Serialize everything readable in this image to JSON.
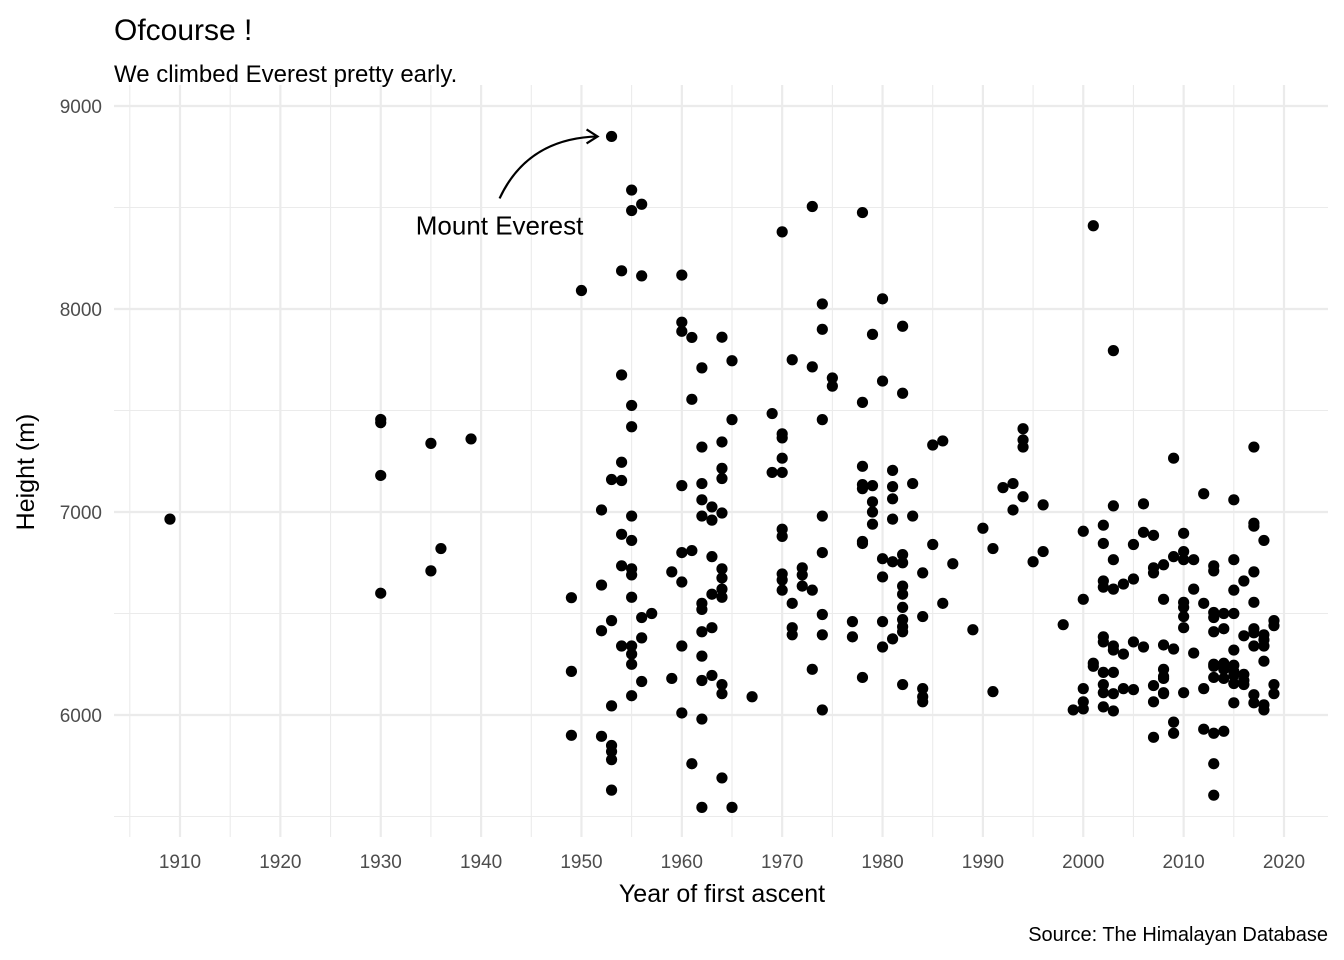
{
  "chart_data": {
    "type": "scatter",
    "title": "Ofcourse !",
    "subtitle": "We climbed Everest pretty early.",
    "xlabel": "Year of first ascent",
    "ylabel": "Height (m)",
    "caption": "Source: The Himalayan Database",
    "xlim": [
      1904,
      2024
    ],
    "ylim": [
      5500,
      9000
    ],
    "x_ticks": [
      1910,
      1920,
      1930,
      1940,
      1950,
      1960,
      1970,
      1980,
      1990,
      2000,
      2010,
      2020
    ],
    "y_ticks": [
      6000,
      7000,
      8000,
      9000
    ],
    "grid": true,
    "legend": "none",
    "point_color": "#000000",
    "annotation": {
      "text": "Mount Everest",
      "target_x": 1953,
      "target_y": 8850,
      "style": "curved-arrow"
    },
    "points": [
      [
        1909,
        6965
      ],
      [
        1930,
        7456
      ],
      [
        1930,
        7440
      ],
      [
        1930,
        7180
      ],
      [
        1930,
        6600
      ],
      [
        1935,
        7338
      ],
      [
        1935,
        6710
      ],
      [
        1936,
        6820
      ],
      [
        1939,
        7360
      ],
      [
        1949,
        6578
      ],
      [
        1949,
        6215
      ],
      [
        1949,
        5900
      ],
      [
        1950,
        8091
      ],
      [
        1952,
        7010
      ],
      [
        1952,
        6640
      ],
      [
        1952,
        6415
      ],
      [
        1952,
        5895
      ],
      [
        1953,
        8850
      ],
      [
        1953,
        7160
      ],
      [
        1953,
        6465
      ],
      [
        1953,
        6045
      ],
      [
        1953,
        5850
      ],
      [
        1953,
        5820
      ],
      [
        1953,
        5780
      ],
      [
        1953,
        5630
      ],
      [
        1954,
        8188
      ],
      [
        1954,
        7675
      ],
      [
        1954,
        7245
      ],
      [
        1954,
        7155
      ],
      [
        1954,
        6890
      ],
      [
        1954,
        6735
      ],
      [
        1954,
        6340
      ],
      [
        1955,
        8586
      ],
      [
        1955,
        8485
      ],
      [
        1955,
        7525
      ],
      [
        1955,
        7420
      ],
      [
        1955,
        6980
      ],
      [
        1955,
        6860
      ],
      [
        1955,
        6720
      ],
      [
        1955,
        6690
      ],
      [
        1955,
        6580
      ],
      [
        1955,
        6340
      ],
      [
        1955,
        6300
      ],
      [
        1955,
        6250
      ],
      [
        1955,
        6095
      ],
      [
        1956,
        8516
      ],
      [
        1956,
        8163
      ],
      [
        1956,
        6480
      ],
      [
        1956,
        6380
      ],
      [
        1956,
        6165
      ],
      [
        1957,
        6500
      ],
      [
        1959,
        6705
      ],
      [
        1959,
        6180
      ],
      [
        1960,
        8167
      ],
      [
        1960,
        7935
      ],
      [
        1960,
        7890
      ],
      [
        1960,
        7130
      ],
      [
        1960,
        6800
      ],
      [
        1960,
        6655
      ],
      [
        1960,
        6340
      ],
      [
        1960,
        6010
      ],
      [
        1961,
        7860
      ],
      [
        1961,
        7555
      ],
      [
        1961,
        6810
      ],
      [
        1961,
        5760
      ],
      [
        1962,
        7710
      ],
      [
        1962,
        7320
      ],
      [
        1962,
        7140
      ],
      [
        1962,
        7060
      ],
      [
        1962,
        6980
      ],
      [
        1962,
        6550
      ],
      [
        1962,
        6520
      ],
      [
        1962,
        6410
      ],
      [
        1962,
        6290
      ],
      [
        1962,
        6170
      ],
      [
        1962,
        5980
      ],
      [
        1962,
        5545
      ],
      [
        1963,
        7025
      ],
      [
        1963,
        6960
      ],
      [
        1963,
        6780
      ],
      [
        1963,
        6595
      ],
      [
        1963,
        6430
      ],
      [
        1963,
        6195
      ],
      [
        1964,
        7861
      ],
      [
        1964,
        7345
      ],
      [
        1964,
        7215
      ],
      [
        1964,
        7165
      ],
      [
        1964,
        6995
      ],
      [
        1964,
        6720
      ],
      [
        1964,
        6675
      ],
      [
        1964,
        6620
      ],
      [
        1964,
        6580
      ],
      [
        1964,
        6150
      ],
      [
        1964,
        6105
      ],
      [
        1964,
        5690
      ],
      [
        1965,
        7745
      ],
      [
        1965,
        7455
      ],
      [
        1965,
        5545
      ],
      [
        1967,
        6090
      ],
      [
        1969,
        7485
      ],
      [
        1969,
        7195
      ],
      [
        1970,
        8380
      ],
      [
        1970,
        7385
      ],
      [
        1970,
        7365
      ],
      [
        1970,
        7265
      ],
      [
        1970,
        7195
      ],
      [
        1970,
        6915
      ],
      [
        1970,
        6880
      ],
      [
        1970,
        6695
      ],
      [
        1970,
        6665
      ],
      [
        1970,
        6615
      ],
      [
        1971,
        7750
      ],
      [
        1971,
        6550
      ],
      [
        1971,
        6430
      ],
      [
        1971,
        6395
      ],
      [
        1972,
        6725
      ],
      [
        1972,
        6690
      ],
      [
        1972,
        6635
      ],
      [
        1973,
        8505
      ],
      [
        1973,
        7715
      ],
      [
        1973,
        6615
      ],
      [
        1973,
        6225
      ],
      [
        1974,
        8025
      ],
      [
        1974,
        7900
      ],
      [
        1974,
        7455
      ],
      [
        1974,
        6980
      ],
      [
        1974,
        6800
      ],
      [
        1974,
        6495
      ],
      [
        1974,
        6395
      ],
      [
        1974,
        6025
      ],
      [
        1975,
        7660
      ],
      [
        1975,
        7620
      ],
      [
        1977,
        6460
      ],
      [
        1977,
        6385
      ],
      [
        1978,
        8475
      ],
      [
        1978,
        7540
      ],
      [
        1978,
        7225
      ],
      [
        1978,
        7135
      ],
      [
        1978,
        7115
      ],
      [
        1978,
        6855
      ],
      [
        1978,
        6845
      ],
      [
        1978,
        6185
      ],
      [
        1979,
        7875
      ],
      [
        1979,
        7130
      ],
      [
        1979,
        7050
      ],
      [
        1979,
        7000
      ],
      [
        1979,
        6940
      ],
      [
        1980,
        8050
      ],
      [
        1980,
        7645
      ],
      [
        1980,
        6770
      ],
      [
        1980,
        6680
      ],
      [
        1980,
        6460
      ],
      [
        1980,
        6335
      ],
      [
        1981,
        7205
      ],
      [
        1981,
        7125
      ],
      [
        1981,
        7065
      ],
      [
        1981,
        6965
      ],
      [
        1981,
        6755
      ],
      [
        1981,
        6375
      ],
      [
        1982,
        7915
      ],
      [
        1982,
        7585
      ],
      [
        1982,
        6790
      ],
      [
        1982,
        6750
      ],
      [
        1982,
        6635
      ],
      [
        1982,
        6595
      ],
      [
        1982,
        6530
      ],
      [
        1982,
        6470
      ],
      [
        1982,
        6435
      ],
      [
        1982,
        6410
      ],
      [
        1982,
        6150
      ],
      [
        1983,
        7140
      ],
      [
        1983,
        6980
      ],
      [
        1984,
        6700
      ],
      [
        1984,
        6485
      ],
      [
        1984,
        6130
      ],
      [
        1984,
        6090
      ],
      [
        1984,
        6065
      ],
      [
        1985,
        7330
      ],
      [
        1985,
        6840
      ],
      [
        1986,
        7350
      ],
      [
        1986,
        6550
      ],
      [
        1987,
        6745
      ],
      [
        1989,
        6420
      ],
      [
        1990,
        6920
      ],
      [
        1991,
        6820
      ],
      [
        1991,
        6115
      ],
      [
        1992,
        7120
      ],
      [
        1993,
        7140
      ],
      [
        1993,
        7010
      ],
      [
        1994,
        7410
      ],
      [
        1994,
        7355
      ],
      [
        1994,
        7320
      ],
      [
        1994,
        7075
      ],
      [
        1995,
        6755
      ],
      [
        1996,
        7035
      ],
      [
        1996,
        6805
      ],
      [
        1998,
        6445
      ],
      [
        1999,
        6025
      ],
      [
        2000,
        6905
      ],
      [
        2000,
        6570
      ],
      [
        2000,
        6130
      ],
      [
        2000,
        6065
      ],
      [
        2000,
        6030
      ],
      [
        2001,
        8410
      ],
      [
        2001,
        6255
      ],
      [
        2001,
        6240
      ],
      [
        2002,
        6935
      ],
      [
        2002,
        6845
      ],
      [
        2002,
        6660
      ],
      [
        2002,
        6630
      ],
      [
        2002,
        6385
      ],
      [
        2002,
        6360
      ],
      [
        2002,
        6210
      ],
      [
        2002,
        6150
      ],
      [
        2002,
        6110
      ],
      [
        2002,
        6040
      ],
      [
        2003,
        7795
      ],
      [
        2003,
        7030
      ],
      [
        2003,
        6765
      ],
      [
        2003,
        6620
      ],
      [
        2003,
        6340
      ],
      [
        2003,
        6320
      ],
      [
        2003,
        6210
      ],
      [
        2003,
        6105
      ],
      [
        2003,
        6020
      ],
      [
        2004,
        6645
      ],
      [
        2004,
        6300
      ],
      [
        2004,
        6130
      ],
      [
        2005,
        6840
      ],
      [
        2005,
        6670
      ],
      [
        2005,
        6360
      ],
      [
        2005,
        6125
      ],
      [
        2006,
        7040
      ],
      [
        2006,
        6900
      ],
      [
        2006,
        6335
      ],
      [
        2007,
        6885
      ],
      [
        2007,
        6725
      ],
      [
        2007,
        6700
      ],
      [
        2007,
        6145
      ],
      [
        2007,
        6065
      ],
      [
        2007,
        5890
      ],
      [
        2008,
        6740
      ],
      [
        2008,
        6570
      ],
      [
        2008,
        6345
      ],
      [
        2008,
        6225
      ],
      [
        2008,
        6190
      ],
      [
        2008,
        6180
      ],
      [
        2008,
        6110
      ],
      [
        2008,
        6105
      ],
      [
        2009,
        7265
      ],
      [
        2009,
        6780
      ],
      [
        2009,
        6325
      ],
      [
        2009,
        5965
      ],
      [
        2009,
        5910
      ],
      [
        2010,
        6895
      ],
      [
        2010,
        6805
      ],
      [
        2010,
        6765
      ],
      [
        2010,
        6555
      ],
      [
        2010,
        6530
      ],
      [
        2010,
        6485
      ],
      [
        2010,
        6430
      ],
      [
        2010,
        6110
      ],
      [
        2011,
        6765
      ],
      [
        2011,
        6620
      ],
      [
        2011,
        6305
      ],
      [
        2012,
        7090
      ],
      [
        2012,
        6550
      ],
      [
        2012,
        6130
      ],
      [
        2012,
        5930
      ],
      [
        2013,
        6735
      ],
      [
        2013,
        6710
      ],
      [
        2013,
        6505
      ],
      [
        2013,
        6480
      ],
      [
        2013,
        6410
      ],
      [
        2013,
        6250
      ],
      [
        2013,
        6240
      ],
      [
        2013,
        6185
      ],
      [
        2013,
        5910
      ],
      [
        2013,
        5760
      ],
      [
        2013,
        5605
      ],
      [
        2014,
        6500
      ],
      [
        2014,
        6425
      ],
      [
        2014,
        6255
      ],
      [
        2014,
        6225
      ],
      [
        2014,
        6180
      ],
      [
        2014,
        5920
      ],
      [
        2015,
        7060
      ],
      [
        2015,
        6765
      ],
      [
        2015,
        6615
      ],
      [
        2015,
        6500
      ],
      [
        2015,
        6320
      ],
      [
        2015,
        6245
      ],
      [
        2015,
        6215
      ],
      [
        2015,
        6195
      ],
      [
        2015,
        6155
      ],
      [
        2015,
        6060
      ],
      [
        2016,
        6660
      ],
      [
        2016,
        6390
      ],
      [
        2016,
        6200
      ],
      [
        2016,
        6170
      ],
      [
        2016,
        6150
      ],
      [
        2017,
        7320
      ],
      [
        2017,
        6945
      ],
      [
        2017,
        6930
      ],
      [
        2017,
        6705
      ],
      [
        2017,
        6555
      ],
      [
        2017,
        6425
      ],
      [
        2017,
        6405
      ],
      [
        2017,
        6340
      ],
      [
        2017,
        6100
      ],
      [
        2017,
        6060
      ],
      [
        2018,
        6860
      ],
      [
        2018,
        6395
      ],
      [
        2018,
        6370
      ],
      [
        2018,
        6340
      ],
      [
        2018,
        6265
      ],
      [
        2018,
        6050
      ],
      [
        2018,
        6025
      ],
      [
        2019,
        6465
      ],
      [
        2019,
        6440
      ],
      [
        2019,
        6150
      ],
      [
        2019,
        6105
      ]
    ]
  }
}
